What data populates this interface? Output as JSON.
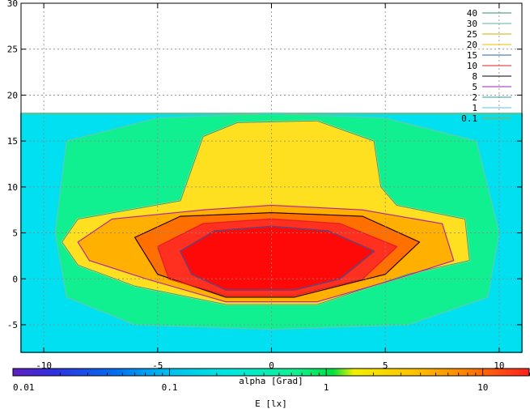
{
  "chart_data": {
    "type": "heatmap",
    "title": "",
    "xlabel": "",
    "ylabel": "",
    "xlim": [
      -11,
      11
    ],
    "ylim": [
      -8,
      30
    ],
    "x_ticks": [
      -10,
      -5,
      0,
      5,
      10
    ],
    "y_ticks": [
      -5,
      0,
      5,
      10,
      15,
      20,
      25,
      30
    ],
    "grid": true,
    "data_y_max": 18,
    "legend_placement": "top-right",
    "legend": [
      {
        "label": "40",
        "color": "#2f8f6f"
      },
      {
        "label": "30",
        "color": "#5fb0a8"
      },
      {
        "label": "25",
        "color": "#d4a800"
      },
      {
        "label": "20",
        "color": "#e8c000"
      },
      {
        "label": "15",
        "color": "#2060b0"
      },
      {
        "label": "10",
        "color": "#e02020"
      },
      {
        "label": "8",
        "color": "#000000"
      },
      {
        "label": "5",
        "color": "#a020c0"
      },
      {
        "label": "2",
        "color": "#20a0a0"
      },
      {
        "label": "1",
        "color": "#60c0e0"
      },
      {
        "label": "0.1",
        "color": "#c0a020"
      }
    ],
    "colorbar": {
      "label": "alpha [Grad]",
      "xlabel": "E [lx]",
      "scale": "log",
      "range": [
        0.01,
        20
      ],
      "tick_labels": [
        "0.01",
        "0.1",
        "1",
        "10"
      ],
      "tick_values": [
        0.01,
        0.1,
        1,
        10
      ]
    },
    "regions": [
      {
        "level": 0.1,
        "color": "#00e0f0",
        "contour": [
          [
            -11,
            -8
          ],
          [
            11,
            -8
          ],
          [
            11,
            18
          ],
          [
            -11,
            18
          ]
        ]
      },
      {
        "level": 1,
        "color": "#10f090",
        "contour": [
          [
            -9.5,
            5
          ],
          [
            -9,
            -2
          ],
          [
            -6,
            -5
          ],
          [
            0,
            -5.5
          ],
          [
            6,
            -5
          ],
          [
            9.5,
            -2
          ],
          [
            10,
            5
          ],
          [
            9,
            15
          ],
          [
            5,
            17.5
          ],
          [
            0,
            18
          ],
          [
            -5,
            17.5
          ],
          [
            -9,
            15
          ]
        ]
      },
      {
        "level": 2,
        "color": "#ffe020",
        "contour": [
          [
            -9.2,
            4
          ],
          [
            -8.5,
            6.5
          ],
          [
            -4,
            8.5
          ],
          [
            -3.5,
            12
          ],
          [
            -3,
            15.5
          ],
          [
            -1.5,
            17
          ],
          [
            2,
            17.2
          ],
          [
            4.5,
            15
          ],
          [
            4.8,
            10
          ],
          [
            5.5,
            8
          ],
          [
            8.5,
            6.5
          ],
          [
            8.7,
            2
          ],
          [
            6,
            0.5
          ],
          [
            2,
            -2.8
          ],
          [
            -2,
            -2.8
          ],
          [
            -6,
            -0.8
          ],
          [
            -8.5,
            1.5
          ]
        ]
      },
      {
        "level": 5,
        "color": "#ffb000",
        "contour": [
          [
            -8.5,
            4
          ],
          [
            -7,
            6.5
          ],
          [
            -3,
            7.5
          ],
          [
            0,
            8
          ],
          [
            4,
            7.5
          ],
          [
            7.5,
            6
          ],
          [
            8,
            2
          ],
          [
            5.5,
            0
          ],
          [
            2,
            -2.5
          ],
          [
            -2,
            -2.5
          ],
          [
            -5.5,
            0
          ],
          [
            -8,
            2
          ]
        ]
      },
      {
        "level": 8,
        "color": "#ff7000",
        "contour": [
          [
            -6,
            4.5
          ],
          [
            -4,
            6.8
          ],
          [
            0,
            7.2
          ],
          [
            4,
            6.8
          ],
          [
            6.5,
            4
          ],
          [
            5,
            0.5
          ],
          [
            1,
            -2
          ],
          [
            -2,
            -2
          ],
          [
            -5,
            0.5
          ]
        ]
      },
      {
        "level": 10,
        "color": "#ff3020",
        "contour": [
          [
            -5,
            3.5
          ],
          [
            -3,
            6
          ],
          [
            0,
            6.5
          ],
          [
            3,
            6
          ],
          [
            5.5,
            3.5
          ],
          [
            4,
            0
          ],
          [
            1,
            -1.8
          ],
          [
            -2,
            -1.8
          ],
          [
            -4.5,
            0
          ]
        ]
      },
      {
        "level": 15,
        "color": "#ff0808",
        "contour": [
          [
            -4,
            3
          ],
          [
            -2.5,
            5.2
          ],
          [
            0,
            5.7
          ],
          [
            2.5,
            5.2
          ],
          [
            4.5,
            3
          ],
          [
            3,
            0
          ],
          [
            1,
            -1.2
          ],
          [
            -2,
            -1.2
          ],
          [
            -3.5,
            0.5
          ]
        ]
      }
    ]
  }
}
